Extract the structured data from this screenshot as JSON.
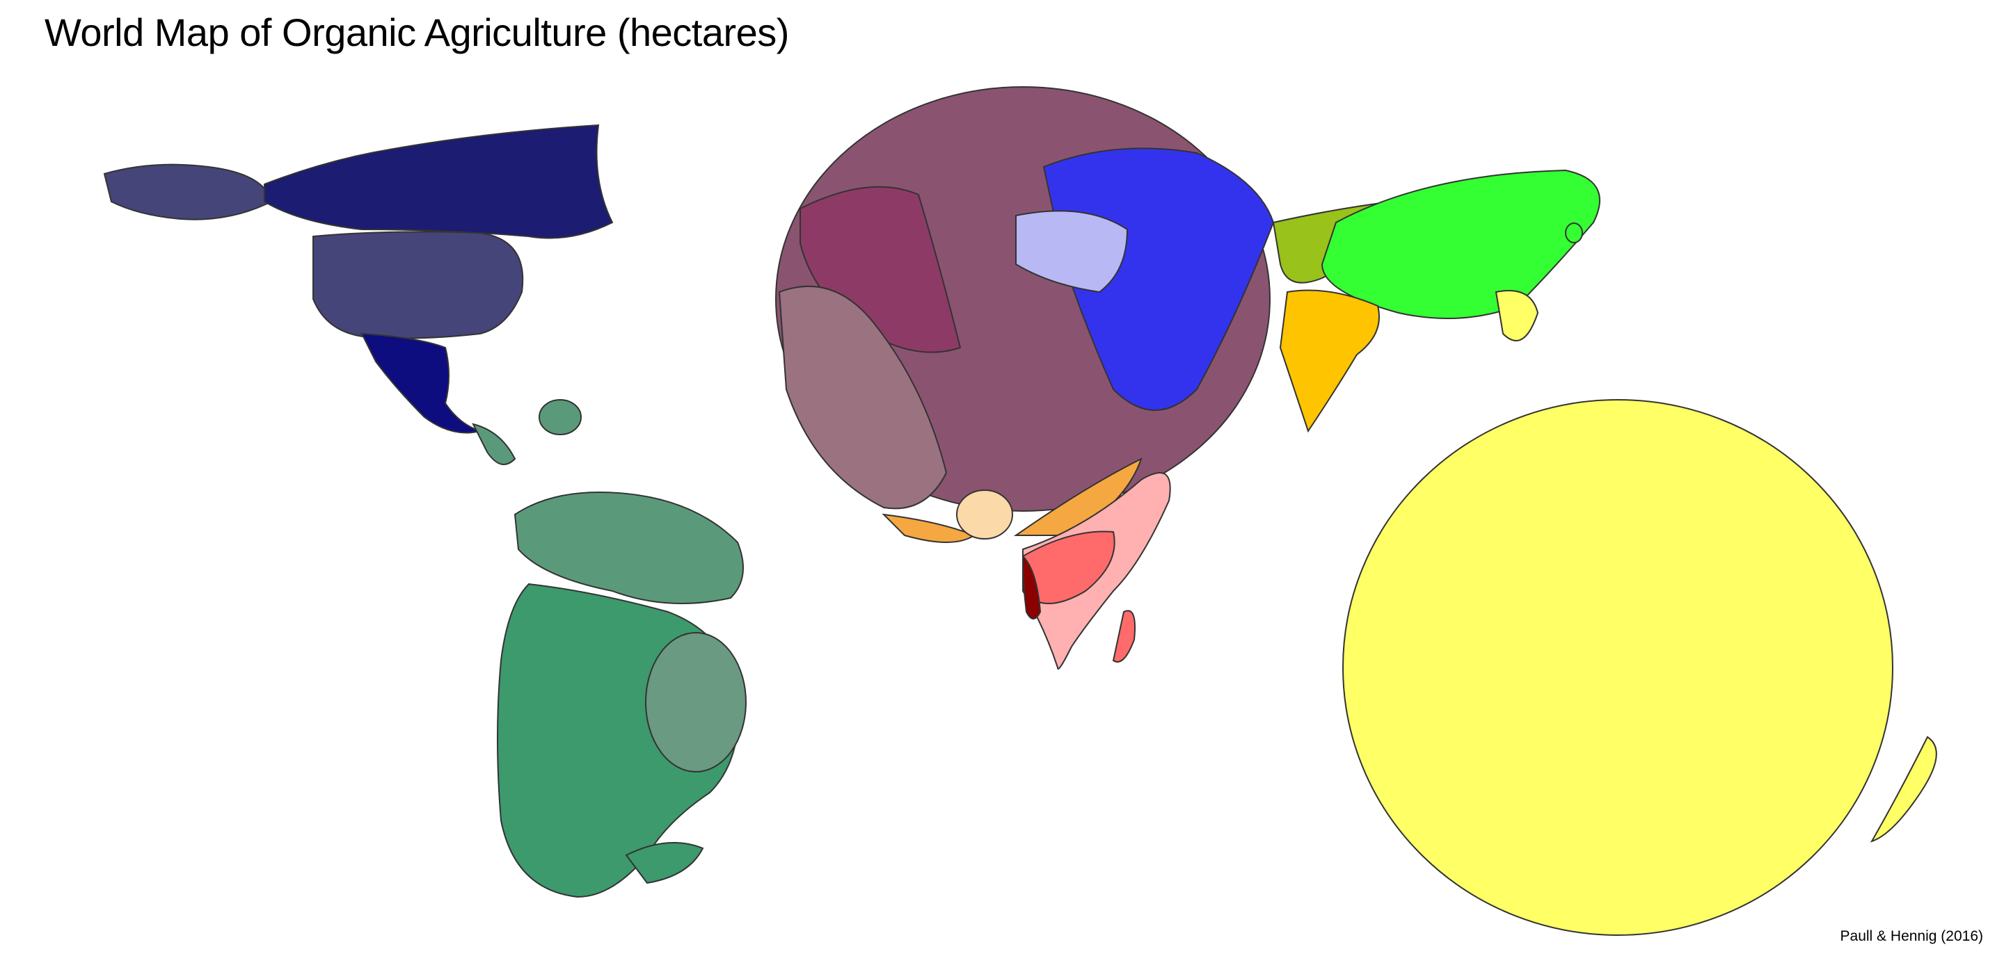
{
  "title": "World Map of Organic Agriculture (hectares)",
  "credit": "Paull & Hennig (2016)",
  "colors": {
    "north_america_canada": "#1c1c72",
    "north_america_usa": "#45457a",
    "mexico": "#0d0d80",
    "south_america": "#3c9a6c",
    "south_america_light": "#6a9a82",
    "south_america_north": "#5a9a7a",
    "europe_west": "#8e3a66",
    "europe_main": "#8a5470",
    "europe_grey": "#9a7280",
    "europe_east_blue": "#3333ee",
    "europe_east_light": "#b8b8f5",
    "africa_red": "#ff6b6b",
    "africa_pink": "#ffb0b0",
    "africa_dark": "#8b0000",
    "africa_orange": "#f5a742",
    "africa_cream": "#fbd9a8",
    "asia_green": "#33ff33",
    "central_asia": "#99c21a",
    "india": "#ffc400",
    "oceania": "#ffff66"
  }
}
